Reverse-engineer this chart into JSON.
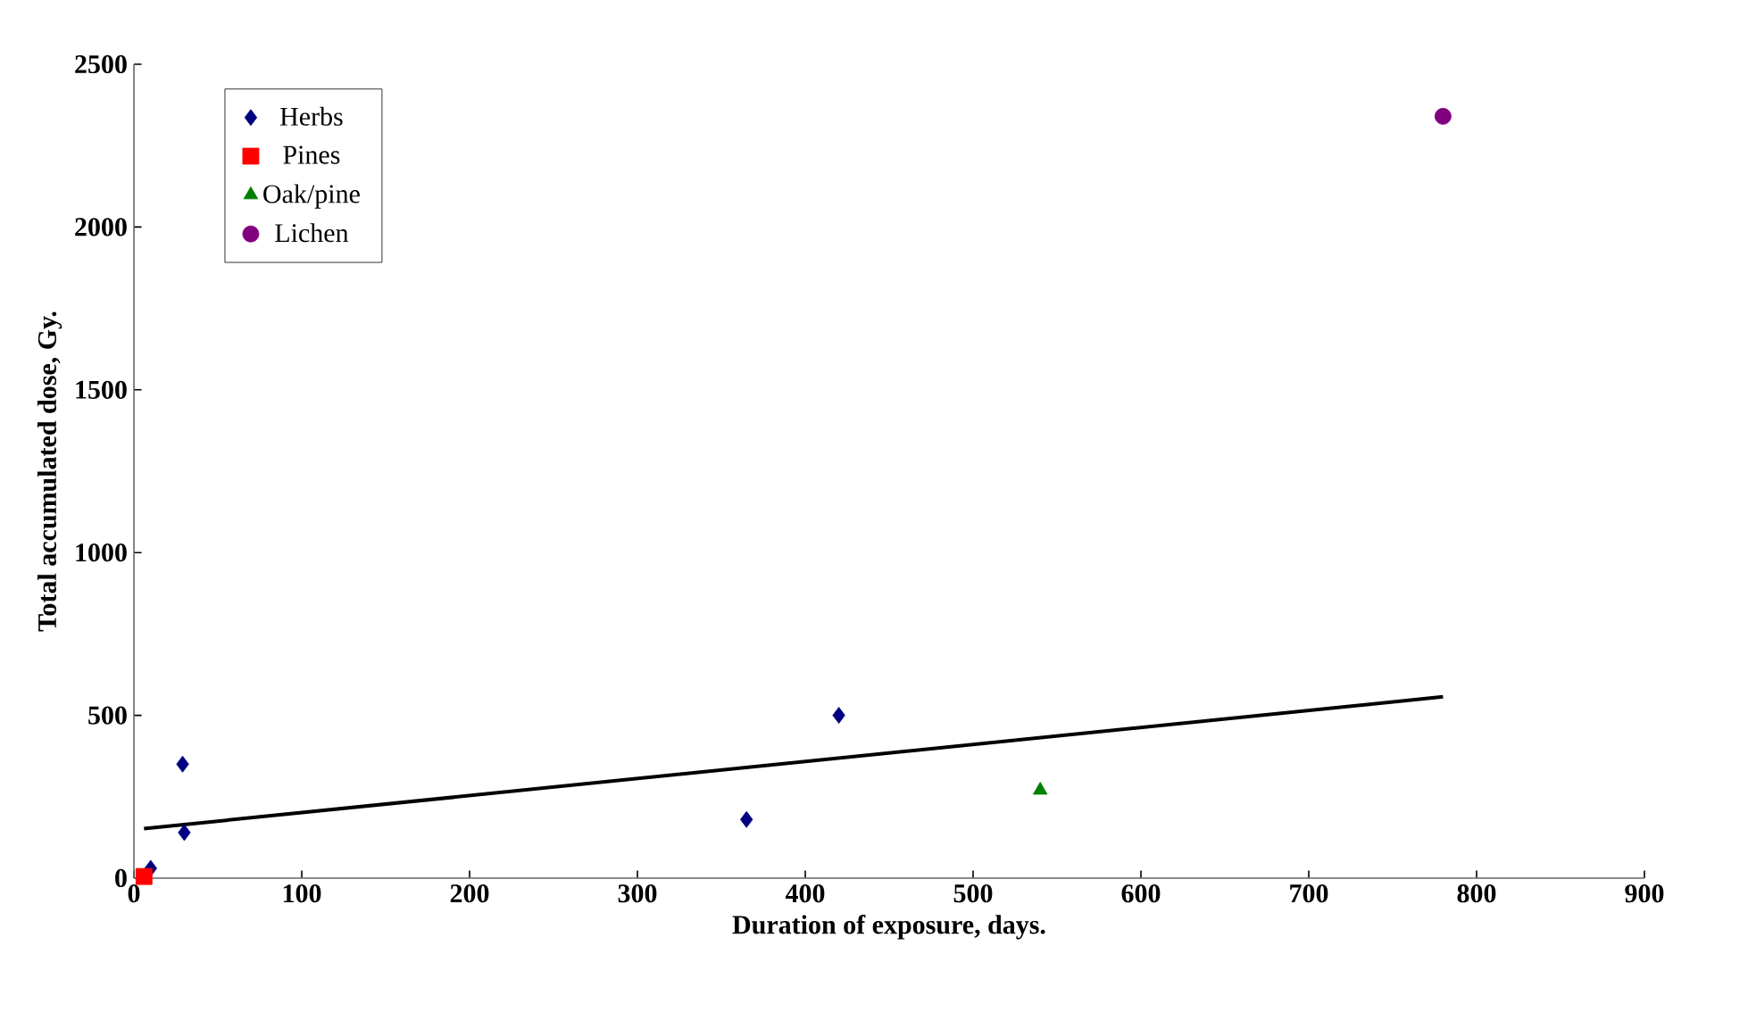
{
  "chart_data": {
    "type": "scatter",
    "xlabel": "Duration of exposure, days.",
    "ylabel": "Total accumulated dose, Gy.",
    "xlim": [
      0,
      900
    ],
    "ylim": [
      0,
      2500
    ],
    "xticks": [
      0,
      100,
      200,
      300,
      400,
      500,
      600,
      700,
      800,
      900
    ],
    "yticks": [
      0,
      500,
      1000,
      1500,
      2000,
      2500
    ],
    "grid": false,
    "legend": "top left",
    "series": [
      {
        "name": "Herbs",
        "color": "#000080",
        "marker": "diamond",
        "x": [
          10,
          29,
          30,
          365,
          420
        ],
        "values": [
          30,
          350,
          140,
          180,
          500
        ]
      },
      {
        "name": "Pines",
        "color": "#ff0000",
        "marker": "square",
        "x": [
          6
        ],
        "values": [
          5
        ]
      },
      {
        "name": "Oak/pine",
        "color": "#008000",
        "marker": "triangle",
        "x": [
          540
        ],
        "values": [
          270
        ]
      },
      {
        "name": "Lichen",
        "color": "#800080",
        "marker": "circle",
        "x": [
          780
        ],
        "values": [
          2340
        ]
      },
      {
        "type": "line",
        "color": "#000000",
        "marker": "none",
        "line_style": "solid",
        "x": [
          6,
          780
        ],
        "values": [
          152,
          557
        ]
      }
    ]
  }
}
